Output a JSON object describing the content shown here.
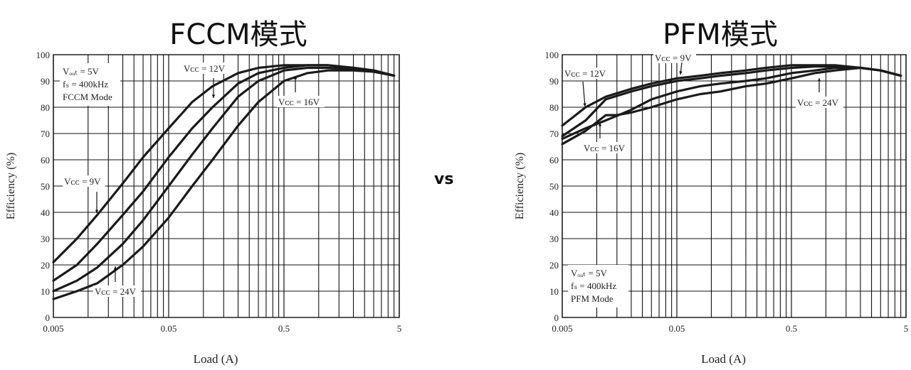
{
  "titles": {
    "left": "FCCM模式",
    "right": "PFM模式",
    "separator": "vs"
  },
  "chart_data": [
    {
      "type": "line",
      "panel": "left",
      "ylabel": "Efficiency (%)",
      "xlabel": "Load (A)",
      "x_scale": "log",
      "xlim": [
        0.005,
        5
      ],
      "ylim": [
        0,
        100
      ],
      "x_ticks": [
        "0.005",
        "0.05",
        "0.5",
        "5"
      ],
      "y_ticks": [
        "0",
        "10",
        "20",
        "30",
        "40",
        "50",
        "60",
        "70",
        "80",
        "90",
        "100"
      ],
      "grid": true,
      "annotation_box": [
        "Vₒᵤₜ = 5V",
        "fₛ = 400kHz",
        "FCCM Mode"
      ],
      "series": [
        {
          "name": "Vᴄᴄ = 9V",
          "x": [
            0.005,
            0.008,
            0.012,
            0.02,
            0.03,
            0.05,
            0.08,
            0.12,
            0.2,
            0.3,
            0.5,
            0.8,
            1.2,
            2,
            3,
            4.5
          ],
          "y": [
            21,
            30,
            39,
            51,
            61,
            72,
            82,
            88,
            93,
            95,
            96,
            96,
            96,
            95,
            94,
            92
          ]
        },
        {
          "name": "Vᴄᴄ = 12V",
          "x": [
            0.005,
            0.008,
            0.012,
            0.02,
            0.03,
            0.05,
            0.08,
            0.12,
            0.2,
            0.3,
            0.5,
            0.8,
            1.2,
            2,
            3,
            4.5
          ],
          "y": [
            14,
            20,
            28,
            39,
            48,
            61,
            72,
            80,
            89,
            93,
            95,
            96,
            96,
            95,
            94,
            92
          ]
        },
        {
          "name": "Vᴄᴄ = 16V",
          "x": [
            0.005,
            0.008,
            0.012,
            0.02,
            0.03,
            0.05,
            0.08,
            0.12,
            0.2,
            0.3,
            0.5,
            0.8,
            1.2,
            2,
            3,
            4.5
          ],
          "y": [
            10,
            14,
            19,
            28,
            37,
            50,
            62,
            72,
            84,
            90,
            94,
            95,
            95,
            94.5,
            94,
            92
          ]
        },
        {
          "name": "Vᴄᴄ = 24V",
          "x": [
            0.005,
            0.008,
            0.012,
            0.02,
            0.03,
            0.05,
            0.08,
            0.12,
            0.2,
            0.3,
            0.5,
            0.8,
            1.2,
            2,
            3,
            4.5
          ],
          "y": [
            7,
            10,
            13,
            20,
            27,
            38,
            50,
            60,
            73,
            82,
            90,
            93,
            94,
            94,
            93.5,
            92
          ]
        }
      ]
    },
    {
      "type": "line",
      "panel": "right",
      "ylabel": "Efficiency (%)",
      "xlabel": "Load (A)",
      "x_scale": "log",
      "xlim": [
        0.005,
        5
      ],
      "ylim": [
        0,
        100
      ],
      "x_ticks": [
        "0.005",
        "0.05",
        "0.5",
        "5"
      ],
      "y_ticks": [
        "0",
        "10",
        "20",
        "30",
        "40",
        "50",
        "60",
        "70",
        "80",
        "90",
        "100"
      ],
      "grid": true,
      "annotation_box": [
        "Vₒᵤₜ = 5V",
        "fₛ = 400kHz",
        "PFM Mode"
      ],
      "series": [
        {
          "name": "Vᴄᴄ = 9V",
          "x": [
            0.005,
            0.008,
            0.012,
            0.02,
            0.03,
            0.05,
            0.08,
            0.12,
            0.2,
            0.3,
            0.5,
            0.8,
            1.2,
            2,
            3,
            4.5
          ],
          "y": [
            73,
            80,
            84,
            87,
            89,
            91,
            92,
            93,
            94,
            95,
            96,
            96,
            96,
            95,
            94,
            92
          ]
        },
        {
          "name": "Vᴄᴄ = 12V",
          "x": [
            0.005,
            0.008,
            0.012,
            0.02,
            0.03,
            0.05,
            0.08,
            0.12,
            0.2,
            0.3,
            0.5,
            0.8,
            1.2,
            2,
            3,
            4.5
          ],
          "y": [
            69,
            75,
            83,
            86,
            88,
            90,
            91,
            92,
            93,
            94,
            95,
            95.5,
            95.5,
            95,
            94,
            92
          ]
        },
        {
          "name": "Vᴄᴄ = 16V",
          "x": [
            0.005,
            0.008,
            0.012,
            0.02,
            0.03,
            0.05,
            0.08,
            0.12,
            0.2,
            0.3,
            0.5,
            0.8,
            1.2,
            2,
            3,
            4.5
          ],
          "y": [
            68,
            72,
            75,
            79,
            83,
            86,
            88,
            89,
            90,
            91,
            93,
            94,
            95,
            95,
            94,
            92
          ]
        },
        {
          "name": "Vᴄᴄ = 24V",
          "x": [
            0.005,
            0.008,
            0.012,
            0.015,
            0.02,
            0.03,
            0.05,
            0.08,
            0.12,
            0.2,
            0.3,
            0.5,
            0.8,
            1.2,
            2,
            3,
            4.5
          ],
          "y": [
            66,
            71,
            77,
            77,
            78,
            80,
            83,
            85,
            86,
            88,
            89,
            91,
            93,
            94,
            95,
            94,
            92
          ]
        }
      ]
    }
  ]
}
